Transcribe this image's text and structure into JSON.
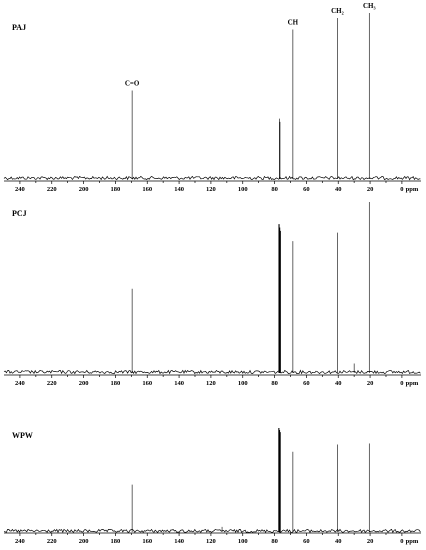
{
  "chart_data": [
    {
      "type": "line",
      "title": "PAJ",
      "xlabel": "ppm",
      "ylabel": "",
      "xlim": [
        250,
        -12
      ],
      "ylim": [
        0,
        1
      ],
      "x_reversed": true,
      "xticks": [
        240,
        220,
        200,
        180,
        160,
        140,
        120,
        100,
        80,
        60,
        40,
        20,
        0
      ],
      "peaks": [
        {
          "ppm": 169.5,
          "intensity": 0.53
        },
        {
          "ppm": 77.0,
          "intensity": 0.36
        },
        {
          "ppm": 76.6,
          "intensity": 0.34
        },
        {
          "ppm": 68.5,
          "intensity": 0.9
        },
        {
          "ppm": 40.5,
          "intensity": 0.97
        },
        {
          "ppm": 20.5,
          "intensity": 1.0
        }
      ],
      "annotations": [
        {
          "text": "C=O",
          "ppm": 169.5
        },
        {
          "text": "CH",
          "ppm": 68.5
        },
        {
          "text": "CH₂",
          "ppm": 40.5
        },
        {
          "text": "CH₃",
          "ppm": 20.5
        }
      ],
      "grid": false,
      "line_color": "#000000"
    },
    {
      "type": "line",
      "title": "PCJ",
      "xlabel": "ppm",
      "ylabel": "",
      "xlim": [
        250,
        -12
      ],
      "ylim": [
        0,
        1
      ],
      "x_reversed": true,
      "xticks": [
        240,
        220,
        200,
        180,
        160,
        140,
        120,
        100,
        80,
        60,
        40,
        20,
        0
      ],
      "peaks": [
        {
          "ppm": 169.5,
          "intensity": 0.49
        },
        {
          "ppm": 77.2,
          "intensity": 0.87
        },
        {
          "ppm": 76.8,
          "intensity": 0.85
        },
        {
          "ppm": 76.4,
          "intensity": 0.83
        },
        {
          "ppm": 68.5,
          "intensity": 0.77
        },
        {
          "ppm": 40.5,
          "intensity": 0.82
        },
        {
          "ppm": 30.0,
          "intensity": 0.05
        },
        {
          "ppm": 20.5,
          "intensity": 1.0
        }
      ],
      "grid": false,
      "line_color": "#000000"
    },
    {
      "type": "line",
      "title": "WPW",
      "xlabel": "ppm",
      "ylabel": "",
      "xlim": [
        250,
        -12
      ],
      "ylim": [
        0,
        1
      ],
      "x_reversed": true,
      "xticks": [
        240,
        220,
        200,
        180,
        160,
        140,
        120,
        100,
        80,
        60,
        40,
        20,
        0
      ],
      "peaks": [
        {
          "ppm": 169.5,
          "intensity": 0.45
        },
        {
          "ppm": 113.0,
          "intensity": 0.04
        },
        {
          "ppm": 77.3,
          "intensity": 1.0
        },
        {
          "ppm": 76.9,
          "intensity": 0.98
        },
        {
          "ppm": 76.5,
          "intensity": 0.96
        },
        {
          "ppm": 68.5,
          "intensity": 0.77
        },
        {
          "ppm": 40.5,
          "intensity": 0.84
        },
        {
          "ppm": 20.5,
          "intensity": 0.85
        }
      ],
      "grid": false,
      "line_color": "#000000"
    }
  ]
}
